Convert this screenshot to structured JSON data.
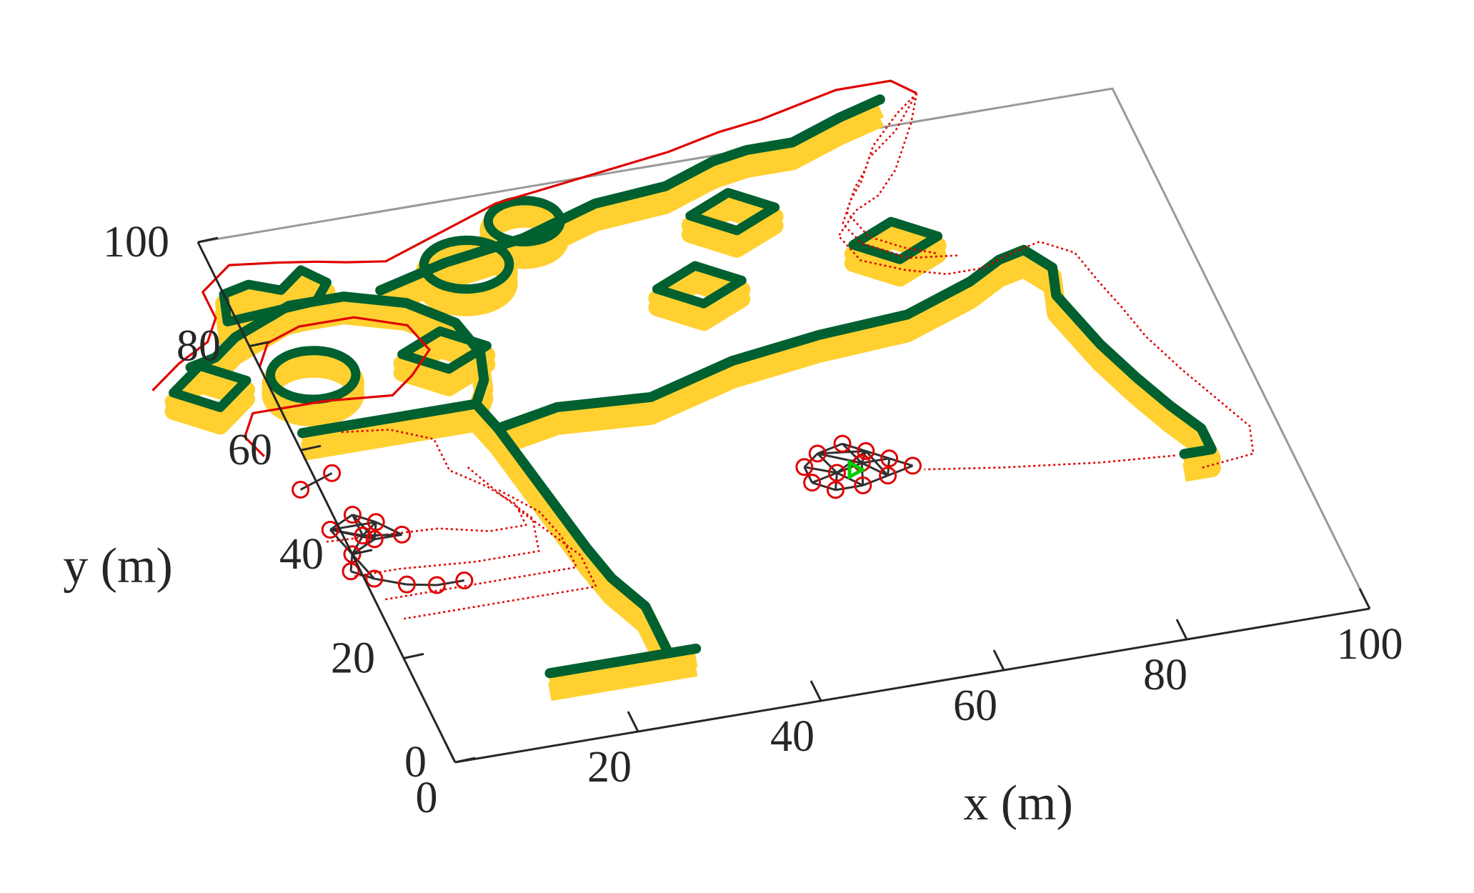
{
  "chart_data": {
    "type": "line",
    "title": "",
    "view": "3d-perspective",
    "xlabel": "x (m)",
    "ylabel": "y (m)",
    "xlim": [
      0,
      100
    ],
    "ylim": [
      0,
      100
    ],
    "x_ticks": [
      0,
      20,
      40,
      60,
      80,
      100
    ],
    "y_ticks": [
      0,
      20,
      40,
      60,
      80,
      100
    ],
    "x_tick_labels": [
      "0",
      "20",
      "40",
      "60",
      "80",
      "100"
    ],
    "y_tick_labels": [
      "0",
      "20",
      "40",
      "60",
      "80",
      "100"
    ],
    "grid": false,
    "colors": {
      "wall_top": "#006030",
      "wall_side": "#ffd030",
      "trajectory": "#e00000",
      "formation": "#303030",
      "agent_marker": "#e00000",
      "leader_marker": "#00cc00",
      "axis": "#262626",
      "box_edge": "#999999"
    },
    "walls": {
      "main_segments": [
        {
          "name": "bottom-bar",
          "points": [
            [
              14,
              13
            ],
            [
              30,
              13
            ]
          ]
        },
        {
          "name": "lower-stem",
          "points": [
            [
              27,
              13
            ],
            [
              27,
              22
            ],
            [
              25,
              28
            ],
            [
              24,
              34
            ],
            [
              23,
              42
            ],
            [
              22,
              50
            ],
            [
              21,
              58
            ],
            [
              20,
              63
            ]
          ]
        },
        {
          "name": "left-bar",
          "points": [
            [
              1,
              63
            ],
            [
              20,
              63
            ]
          ]
        },
        {
          "name": "right-corridor",
          "points": [
            [
              21,
              58
            ],
            [
              28,
              60
            ],
            [
              38,
              59
            ],
            [
              48,
              63
            ],
            [
              58,
              65
            ],
            [
              68,
              66
            ],
            [
              76,
              70
            ],
            [
              80,
              73
            ],
            [
              83,
              74
            ],
            [
              85,
              70
            ],
            [
              84,
              65
            ],
            [
              85,
              60
            ],
            [
              86,
              55
            ],
            [
              88,
              48
            ],
            [
              90,
              42
            ],
            [
              92,
              37
            ],
            [
              92,
              33
            ],
            [
              89,
              33
            ]
          ]
        },
        {
          "name": "inner-arc",
          "points": [
            [
              20,
              63
            ],
            [
              22,
              67
            ],
            [
              23,
              72
            ],
            [
              22,
              78
            ],
            [
              18,
              83
            ],
            [
              12,
              86
            ],
            [
              6,
              86
            ],
            [
              -1,
              82
            ],
            [
              -4,
              79
            ],
            [
              -7,
              78
            ]
          ]
        },
        {
          "name": "upper-corridor",
          "points": [
            [
              16,
              86
            ],
            [
              24,
              89
            ],
            [
              33,
              91
            ],
            [
              42,
              95
            ],
            [
              50,
              96
            ],
            [
              56,
              99
            ],
            [
              60,
              100
            ],
            [
              65,
              100
            ],
            [
              71,
              103
            ],
            [
              76,
              105
            ]
          ]
        }
      ],
      "closed_shapes": [
        {
          "name": "square-left",
          "points": [
            [
              -10,
              74
            ],
            [
              -6,
              78
            ],
            [
              -2,
              74
            ],
            [
              -6,
              70
            ]
          ]
        },
        {
          "name": "heart-shape",
          "points": [
            [
              -1,
              85
            ],
            [
              0,
              90
            ],
            [
              3,
              91
            ],
            [
              6,
              89
            ],
            [
              9,
              92
            ],
            [
              11,
              89
            ],
            [
              9,
              86
            ]
          ]
        },
        {
          "name": "ring-left",
          "center": [
            5,
            73
          ],
          "r": 4.5
        },
        {
          "name": "ring-mid",
          "center": [
            26,
            88
          ],
          "r": 4.5
        },
        {
          "name": "ring-top",
          "center": [
            34,
            94
          ],
          "r": 3.8
        },
        {
          "name": "square-mid",
          "points": [
            [
              15,
              74
            ],
            [
              20,
              77
            ],
            [
              24,
              73
            ],
            [
              19,
              70
            ]
          ]
        },
        {
          "name": "square-inner",
          "points": [
            [
              44,
              78
            ],
            [
              49,
              81
            ],
            [
              53,
              77
            ],
            [
              48,
              74
            ]
          ]
        },
        {
          "name": "square-upper",
          "points": [
            [
              51,
              90
            ],
            [
              56,
              93
            ],
            [
              60,
              89
            ],
            [
              55,
              86
            ]
          ]
        },
        {
          "name": "square-right",
          "points": [
            [
              66,
              80
            ],
            [
              71,
              83
            ],
            [
              75,
              79
            ],
            [
              70,
              76
            ]
          ]
        }
      ]
    },
    "series": [
      {
        "role": "trajectory",
        "style": "solid",
        "points": [
          [
            -12,
            75
          ],
          [
            -8,
            79
          ],
          [
            -4,
            82
          ],
          [
            -2,
            86
          ],
          [
            -2,
            91
          ],
          [
            2,
            95
          ],
          [
            7,
            94
          ],
          [
            11,
            93
          ],
          [
            14,
            92
          ],
          [
            18,
            91
          ],
          [
            24,
            94
          ],
          [
            32,
            98
          ],
          [
            42,
            100
          ],
          [
            52,
            102
          ],
          [
            58,
            104
          ],
          [
            63,
            105
          ],
          [
            72,
            108
          ],
          [
            78,
            108
          ],
          [
            80,
            105
          ]
        ]
      },
      {
        "role": "trajectory",
        "style": "solid",
        "points": [
          [
            -4,
            60
          ],
          [
            -5,
            64
          ],
          [
            -3,
            68
          ],
          [
            5,
            68
          ],
          [
            12,
            67
          ],
          [
            15,
            70
          ],
          [
            18,
            74
          ],
          [
            17,
            79
          ],
          [
            12,
            82
          ],
          [
            6,
            82
          ],
          [
            2,
            80
          ],
          [
            0,
            76
          ]
        ]
      },
      {
        "role": "trajectory",
        "style": "dotted",
        "points": [
          [
            80,
            105
          ],
          [
            78,
            100
          ],
          [
            76,
            96
          ],
          [
            74,
            92
          ],
          [
            71,
            88
          ],
          [
            68,
            86
          ],
          [
            65,
            82
          ],
          [
            66,
            77
          ],
          [
            70,
            74
          ],
          [
            74,
            72
          ],
          [
            78,
            72
          ],
          [
            82,
            74
          ],
          [
            85,
            75
          ],
          [
            88,
            72
          ],
          [
            89,
            66
          ],
          [
            90,
            61
          ],
          [
            91,
            55
          ],
          [
            93,
            48
          ],
          [
            95,
            42
          ],
          [
            97,
            36
          ],
          [
            96,
            31
          ],
          [
            90,
            30
          ]
        ]
      },
      {
        "role": "trajectory",
        "style": "dotted",
        "points": [
          [
            80,
            105
          ],
          [
            76,
            99
          ],
          [
            72,
            95
          ],
          [
            70,
            91
          ],
          [
            68,
            88
          ],
          [
            66,
            84
          ],
          [
            67,
            80
          ],
          [
            71,
            76
          ],
          [
            76,
            75
          ]
        ]
      },
      {
        "role": "trajectory",
        "style": "dotted",
        "points": [
          [
            80,
            105
          ],
          [
            77,
            102
          ],
          [
            73,
            97
          ],
          [
            71,
            93
          ],
          [
            69,
            90
          ],
          [
            67,
            86
          ],
          [
            68,
            81
          ],
          [
            71,
            78
          ],
          [
            74,
            76
          ]
        ]
      },
      {
        "role": "trajectory",
        "style": "dotted",
        "points": [
          [
            5,
            62
          ],
          [
            10,
            61
          ],
          [
            14,
            58
          ],
          [
            14,
            52
          ],
          [
            17,
            48
          ],
          [
            19,
            44
          ],
          [
            19,
            40
          ],
          [
            15,
            40
          ],
          [
            10,
            42
          ],
          [
            -2,
            43
          ]
        ]
      },
      {
        "role": "trajectory",
        "style": "dotted",
        "points": [
          [
            16,
            52
          ],
          [
            18,
            46
          ],
          [
            20,
            41
          ],
          [
            19,
            35
          ],
          [
            12,
            35
          ],
          [
            4,
            36
          ],
          [
            -1,
            36
          ]
        ]
      },
      {
        "role": "trajectory",
        "style": "dotted",
        "points": [
          [
            18,
            47
          ],
          [
            21,
            42
          ],
          [
            22,
            37
          ],
          [
            22,
            31
          ],
          [
            14,
            31
          ],
          [
            6,
            31
          ],
          [
            1,
            31
          ]
        ]
      },
      {
        "role": "trajectory",
        "style": "dotted",
        "points": [
          [
            19,
            43
          ],
          [
            21,
            38
          ],
          [
            23,
            33
          ],
          [
            23,
            27
          ],
          [
            14,
            27
          ],
          [
            5,
            27
          ],
          [
            2,
            27
          ]
        ]
      },
      {
        "role": "trajectory",
        "style": "dotted",
        "points": [
          [
            88,
            33
          ],
          [
            80,
            34
          ],
          [
            70,
            36
          ],
          [
            62,
            38
          ]
        ]
      }
    ],
    "formations": [
      {
        "name": "formation-start",
        "agents": [
          [
            -1,
            45
          ],
          [
            2,
            47
          ],
          [
            4,
            45
          ],
          [
            3,
            42
          ],
          [
            0,
            40
          ],
          [
            -1,
            37
          ],
          [
            1,
            35
          ],
          [
            4,
            33
          ],
          [
            7,
            32
          ],
          [
            10,
            32
          ],
          [
            6,
            42
          ],
          [
            2,
            43
          ]
        ]
      },
      {
        "name": "formation-end",
        "agents": [
          [
            50,
            42
          ],
          [
            52,
            44
          ],
          [
            55,
            45
          ],
          [
            57,
            43
          ],
          [
            59,
            41
          ],
          [
            61,
            39
          ],
          [
            58,
            38
          ],
          [
            55,
            37
          ],
          [
            52,
            37
          ],
          [
            50,
            39
          ],
          [
            53,
            40
          ],
          [
            56,
            41
          ]
        ],
        "leader": [
          55,
          40
        ]
      },
      {
        "name": "pair-left",
        "agents": [
          [
            -2,
            53
          ],
          [
            2,
            55
          ]
        ]
      }
    ]
  }
}
